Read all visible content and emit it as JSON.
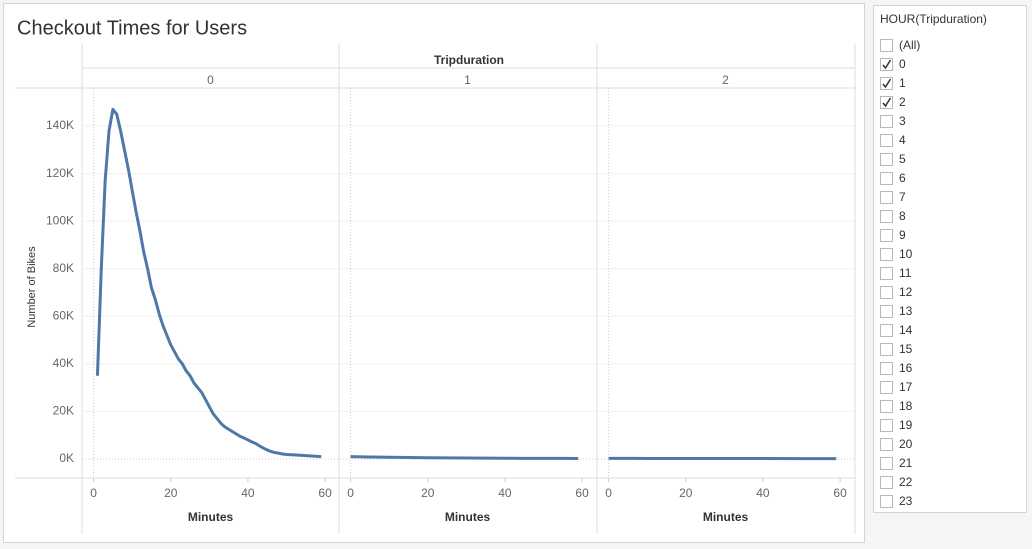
{
  "chart_data": {
    "type": "line",
    "title": "Checkout Times for Users",
    "facet_title": "Tripduration",
    "ylabel": "Number of Bikes",
    "color": "#4e79a7",
    "grid": true,
    "ylim": [
      -8000,
      156000
    ],
    "yticks": [
      {
        "value": 0,
        "label": "0K"
      },
      {
        "value": 20000,
        "label": "20K"
      },
      {
        "value": 40000,
        "label": "40K"
      },
      {
        "value": 60000,
        "label": "60K"
      },
      {
        "value": 80000,
        "label": "80K"
      },
      {
        "value": 100000,
        "label": "100K"
      },
      {
        "value": 120000,
        "label": "120K"
      },
      {
        "value": 140000,
        "label": "140K"
      }
    ],
    "panels": [
      {
        "label": "0",
        "xlabel": "Minutes",
        "xlim": [
          -3,
          63.6
        ],
        "xticks": [
          0,
          20,
          40,
          60
        ],
        "x": [
          1,
          2,
          3,
          4,
          5,
          6,
          7,
          8,
          9,
          10,
          11,
          12,
          13,
          14,
          15,
          16,
          17,
          18,
          19,
          20,
          21,
          22,
          23,
          24,
          25,
          26,
          27,
          28,
          29,
          30,
          31,
          32,
          33,
          34,
          35,
          36,
          37,
          38,
          39,
          40,
          41,
          42,
          43,
          44,
          45,
          46,
          47,
          48,
          49,
          50,
          51,
          52,
          53,
          54,
          55,
          56,
          57,
          58,
          59
        ],
        "values": [
          35000,
          80000,
          117000,
          138000,
          147000,
          145000,
          138000,
          130000,
          122000,
          113000,
          104000,
          96000,
          87000,
          80000,
          72000,
          67000,
          61000,
          56000,
          52000,
          48000,
          45000,
          42000,
          40000,
          37000,
          35000,
          32000,
          30000,
          28000,
          25000,
          22000,
          19000,
          17000,
          15000,
          13500,
          12500,
          11500,
          10500,
          9500,
          8800,
          8000,
          7200,
          6500,
          5500,
          4600,
          3800,
          3100,
          2700,
          2400,
          2100,
          1900,
          1800,
          1700,
          1600,
          1500,
          1400,
          1300,
          1200,
          1100,
          1000
        ]
      },
      {
        "label": "1",
        "xlabel": "Minutes",
        "xlim": [
          -3,
          63.6
        ],
        "xticks": [
          0,
          20,
          40,
          60
        ],
        "x": [
          0,
          5,
          10,
          15,
          20,
          25,
          30,
          35,
          40,
          45,
          50,
          55,
          59
        ],
        "values": [
          1000,
          850,
          700,
          600,
          500,
          450,
          400,
          350,
          300,
          270,
          250,
          230,
          200
        ]
      },
      {
        "label": "2",
        "xlabel": "Minutes",
        "xlim": [
          -3,
          63.6
        ],
        "xticks": [
          0,
          20,
          40,
          60
        ],
        "x": [
          0,
          10,
          20,
          30,
          40,
          50,
          59
        ],
        "values": [
          250,
          220,
          200,
          190,
          180,
          170,
          160
        ]
      }
    ]
  },
  "filter": {
    "title": "HOUR(Tripduration)",
    "items": [
      {
        "label": "(All)",
        "checked": false
      },
      {
        "label": "0",
        "checked": true
      },
      {
        "label": "1",
        "checked": true
      },
      {
        "label": "2",
        "checked": true
      },
      {
        "label": "3",
        "checked": false
      },
      {
        "label": "4",
        "checked": false
      },
      {
        "label": "5",
        "checked": false
      },
      {
        "label": "6",
        "checked": false
      },
      {
        "label": "7",
        "checked": false
      },
      {
        "label": "8",
        "checked": false
      },
      {
        "label": "9",
        "checked": false
      },
      {
        "label": "10",
        "checked": false
      },
      {
        "label": "11",
        "checked": false
      },
      {
        "label": "12",
        "checked": false
      },
      {
        "label": "13",
        "checked": false
      },
      {
        "label": "14",
        "checked": false
      },
      {
        "label": "15",
        "checked": false
      },
      {
        "label": "16",
        "checked": false
      },
      {
        "label": "17",
        "checked": false
      },
      {
        "label": "18",
        "checked": false
      },
      {
        "label": "19",
        "checked": false
      },
      {
        "label": "20",
        "checked": false
      },
      {
        "label": "21",
        "checked": false
      },
      {
        "label": "22",
        "checked": false
      },
      {
        "label": "23",
        "checked": false
      }
    ]
  }
}
